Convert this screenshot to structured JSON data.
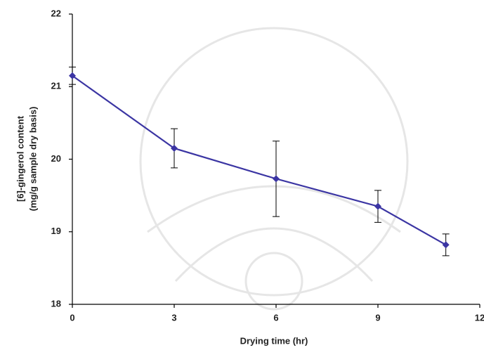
{
  "chart_data": {
    "type": "line",
    "x": [
      0,
      3,
      6,
      9,
      11
    ],
    "values": [
      21.15,
      20.15,
      19.73,
      19.35,
      18.82
    ],
    "errors": [
      0.12,
      0.27,
      0.52,
      0.22,
      0.15
    ],
    "color": "#3b35a3",
    "xlabel": "Drying time (hr)",
    "ylabel": [
      "[6]-gingerol content",
      "(mg/g sample dry basis)"
    ],
    "xlim": [
      0,
      12
    ],
    "xticks": [
      0,
      3,
      6,
      9,
      12
    ],
    "ylim": [
      18,
      22
    ],
    "yticks": [
      18,
      19,
      20,
      21,
      22
    ],
    "grid": false
  }
}
